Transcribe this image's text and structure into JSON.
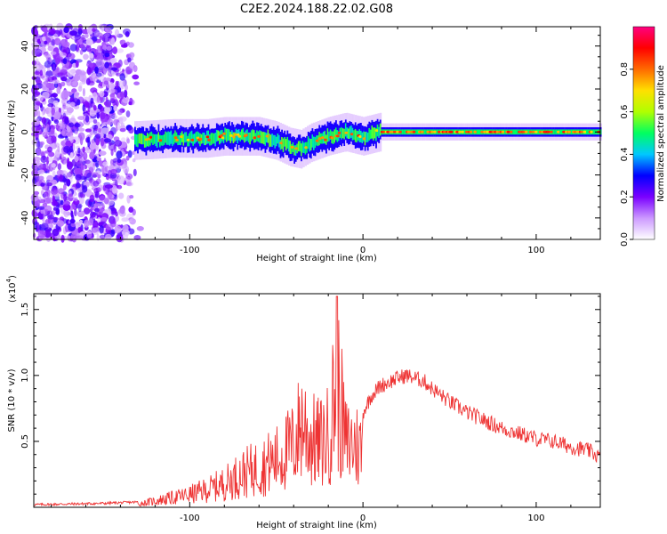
{
  "title": "C2E2.2024.188.22.02.G08",
  "chart_data": [
    {
      "type": "heatmap",
      "xlabel": "Height of straight line (km)",
      "ylabel": "Frequency (Hz)",
      "xlim": [
        -190,
        137
      ],
      "ylim": [
        -50,
        49
      ],
      "x_ticks": [
        -100,
        0,
        100
      ],
      "y_ticks": [
        -40,
        -20,
        0,
        20,
        40
      ],
      "colorbar": {
        "label": "Normalized spectral amplitude",
        "range": [
          0,
          1
        ],
        "ticks": [
          0.0,
          0.2,
          0.4,
          0.6,
          0.8
        ],
        "colormap": [
          "#ffffff",
          "#cc99ff",
          "#7a00ff",
          "#0000ff",
          "#00c8ff",
          "#00ff60",
          "#b0ff00",
          "#ffe000",
          "#ff6a00",
          "#ff0000",
          "#ff0080"
        ]
      },
      "ridge_line": {
        "x": [
          -132,
          -120,
          -110,
          -100,
          -90,
          -80,
          -70,
          -60,
          -50,
          -42,
          -36,
          -30,
          -20,
          -10,
          0,
          10,
          20,
          40,
          60,
          80,
          100,
          120,
          137
        ],
        "y": [
          -4,
          -3.5,
          -3,
          -3,
          -3,
          -2,
          -2,
          -2,
          -4,
          -7,
          -8,
          -5,
          -2,
          0,
          -2,
          0,
          0,
          0,
          0,
          0,
          0,
          0,
          0
        ]
      },
      "grid": false
    },
    {
      "type": "line",
      "xlabel": "Height of straight line (km)",
      "ylabel": "SNR (10 * v/v)",
      "axis_multiplier": "(x10",
      "axis_multiplier_exp": "4",
      "axis_multiplier_close": ")",
      "xlim": [
        -190,
        137
      ],
      "ylim": [
        0,
        1.62
      ],
      "x_ticks": [
        -100,
        0,
        100
      ],
      "y_ticks": [
        0.5,
        1.0,
        1.5
      ],
      "y_tick_labels": [
        "0.5",
        "1.0",
        "1.5"
      ],
      "line_color": "#ee3333",
      "envelope": {
        "x": [
          -190,
          -150,
          -130,
          -120,
          -110,
          -100,
          -90,
          -80,
          -70,
          -60,
          -50,
          -40,
          -35,
          -30,
          -25,
          -20,
          -15,
          -10,
          -5,
          0,
          5,
          10,
          15,
          20,
          25,
          30,
          35,
          40,
          50,
          60,
          70,
          80,
          90,
          100,
          110,
          120,
          130,
          137
        ],
        "y": [
          0.02,
          0.03,
          0.04,
          0.08,
          0.12,
          0.16,
          0.22,
          0.3,
          0.42,
          0.5,
          0.6,
          0.78,
          1.1,
          0.85,
          0.8,
          0.9,
          1.6,
          0.8,
          0.8,
          0.72,
          0.85,
          0.92,
          0.95,
          0.98,
          1.0,
          0.98,
          0.96,
          0.9,
          0.8,
          0.72,
          0.66,
          0.6,
          0.56,
          0.52,
          0.5,
          0.46,
          0.43,
          0.38
        ]
      },
      "grid": false
    }
  ]
}
